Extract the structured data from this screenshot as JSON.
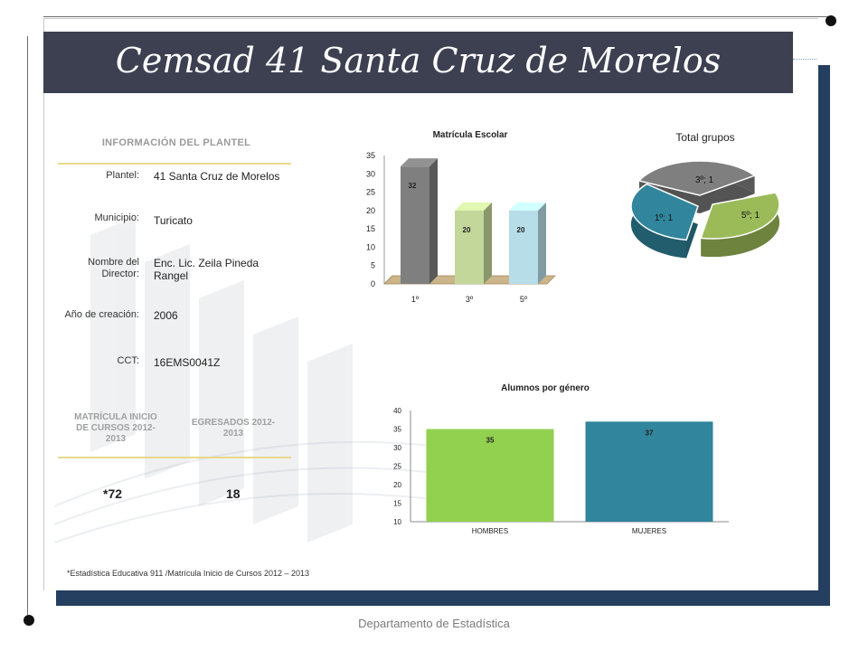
{
  "title": "Cemsad 41 Santa Cruz de Morelos",
  "info": {
    "heading": "INFORMACIÓN DEL PLANTEL",
    "rows": [
      {
        "label": "Plantel:",
        "value": "41 Santa Cruz de Morelos"
      },
      {
        "label": "Municipio:",
        "value": "Turicato"
      },
      {
        "label": "Nombre del Director:",
        "value": "Enc. Lic. Zeila Pineda Rangel"
      },
      {
        "label": "Año de creación:",
        "value": "2006"
      },
      {
        "label": "CCT:",
        "value": "16EMS0041Z"
      }
    ]
  },
  "matricula": {
    "heading": "MATRÍCULA INICIO DE CURSOS 2012-2013",
    "value": "*72"
  },
  "egresados": {
    "heading": "EGRESADOS 2012-2013",
    "value": "18"
  },
  "footnote": "*Estadística Educativa 911 /Matrícula Inicio de Cursos 2012 – 2013",
  "footer": "Departamento de Estadística",
  "chart_data": [
    {
      "type": "bar",
      "title": "Matrícula Escolar",
      "categories": [
        "1º",
        "3º",
        "5º"
      ],
      "values": [
        32,
        20,
        20
      ],
      "ylim": [
        0,
        35
      ],
      "yticks": [
        0,
        5,
        10,
        15,
        20,
        25,
        30,
        35
      ],
      "colors": [
        "#7f7f7f",
        "#c4d79b",
        "#b7dee8"
      ]
    },
    {
      "type": "pie",
      "title": "Total grupos",
      "slices": [
        {
          "label": "3º; 1",
          "value": 1,
          "color": "#7f7f7f"
        },
        {
          "label": "5º; 1",
          "value": 1,
          "color": "#9bbb59"
        },
        {
          "label": "1º; 1",
          "value": 1,
          "color": "#31859c"
        }
      ]
    },
    {
      "type": "bar",
      "title": "Alumnos por género",
      "categories": [
        "HOMBRES",
        "MUJERES"
      ],
      "values": [
        35,
        37
      ],
      "ylim": [
        10,
        40
      ],
      "yticks": [
        10,
        15,
        20,
        25,
        30,
        35,
        40
      ],
      "colors": [
        "#92d050",
        "#31859c"
      ]
    }
  ]
}
